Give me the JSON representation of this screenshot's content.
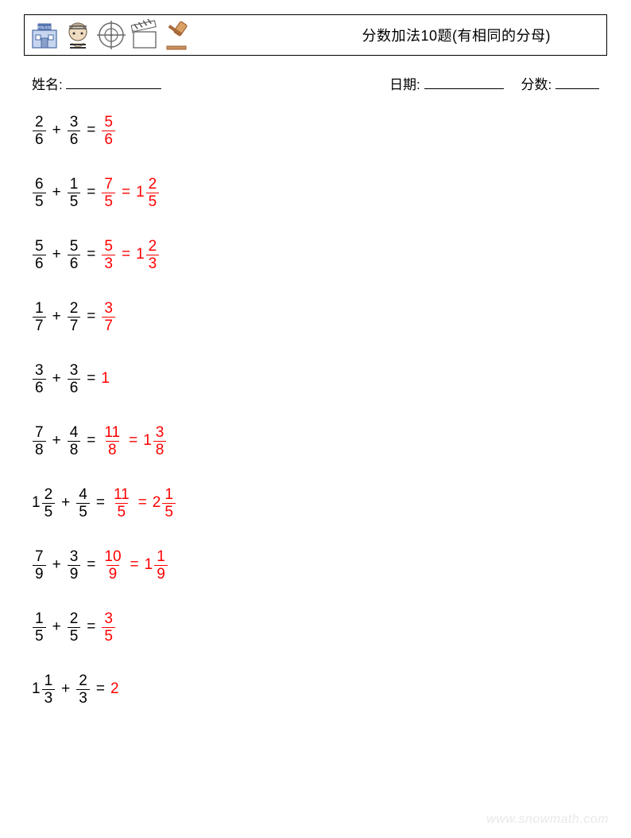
{
  "header": {
    "title": "分数加法10题(有相同的分母)",
    "title_fontsize": 18,
    "border_color": "#000000",
    "icons": [
      {
        "name": "police-station",
        "stroke": "#4a6aa5",
        "fill": "#c7d5ef"
      },
      {
        "name": "prisoner",
        "stroke": "#7a6a55",
        "fill": "#e8d9c0"
      },
      {
        "name": "crosshair",
        "stroke": "#6a6a6a",
        "fill": "none"
      },
      {
        "name": "clapperboard",
        "stroke": "#6a6a6a",
        "fill": "#ffffff"
      },
      {
        "name": "gavel",
        "stroke": "#a06030",
        "fill": "#d9a066"
      }
    ]
  },
  "info": {
    "name_label": "姓名:",
    "date_label": "日期:",
    "score_label": "分数:"
  },
  "style": {
    "text_color": "#000000",
    "answer_color": "#ff0000",
    "background_color": "#ffffff",
    "fontsize": 19,
    "row_gap": 30
  },
  "problems": [
    {
      "a": {
        "n": 2,
        "d": 6
      },
      "b": {
        "n": 3,
        "d": 6
      },
      "ans": [
        {
          "type": "frac",
          "n": 5,
          "d": 6
        }
      ]
    },
    {
      "a": {
        "n": 6,
        "d": 5
      },
      "b": {
        "n": 1,
        "d": 5
      },
      "ans": [
        {
          "type": "frac",
          "n": 7,
          "d": 5
        },
        {
          "type": "mixed",
          "w": 1,
          "n": 2,
          "d": 5
        }
      ]
    },
    {
      "a": {
        "n": 5,
        "d": 6
      },
      "b": {
        "n": 5,
        "d": 6
      },
      "ans": [
        {
          "type": "frac",
          "n": 5,
          "d": 3
        },
        {
          "type": "mixed",
          "w": 1,
          "n": 2,
          "d": 3
        }
      ]
    },
    {
      "a": {
        "n": 1,
        "d": 7
      },
      "b": {
        "n": 2,
        "d": 7
      },
      "ans": [
        {
          "type": "frac",
          "n": 3,
          "d": 7
        }
      ]
    },
    {
      "a": {
        "n": 3,
        "d": 6
      },
      "b": {
        "n": 3,
        "d": 6
      },
      "ans": [
        {
          "type": "int",
          "v": 1
        }
      ]
    },
    {
      "a": {
        "n": 7,
        "d": 8
      },
      "b": {
        "n": 4,
        "d": 8
      },
      "ans": [
        {
          "type": "frac",
          "n": 11,
          "d": 8
        },
        {
          "type": "mixed",
          "w": 1,
          "n": 3,
          "d": 8
        }
      ]
    },
    {
      "a": {
        "w": 1,
        "n": 2,
        "d": 5
      },
      "b": {
        "n": 4,
        "d": 5
      },
      "ans": [
        {
          "type": "frac",
          "n": 11,
          "d": 5
        },
        {
          "type": "mixed",
          "w": 2,
          "n": 1,
          "d": 5
        }
      ]
    },
    {
      "a": {
        "n": 7,
        "d": 9
      },
      "b": {
        "n": 3,
        "d": 9
      },
      "ans": [
        {
          "type": "frac",
          "n": 10,
          "d": 9
        },
        {
          "type": "mixed",
          "w": 1,
          "n": 1,
          "d": 9
        }
      ]
    },
    {
      "a": {
        "n": 1,
        "d": 5
      },
      "b": {
        "n": 2,
        "d": 5
      },
      "ans": [
        {
          "type": "frac",
          "n": 3,
          "d": 5
        }
      ]
    },
    {
      "a": {
        "w": 1,
        "n": 1,
        "d": 3
      },
      "b": {
        "n": 2,
        "d": 3
      },
      "ans": [
        {
          "type": "int",
          "v": 2
        }
      ]
    }
  ],
  "watermark": "www.snowmath.com"
}
